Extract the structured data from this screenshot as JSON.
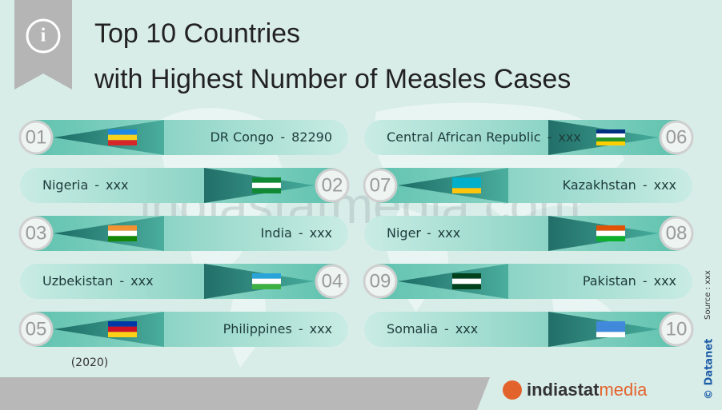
{
  "header": {
    "title_line1": "Top 10 Countries",
    "title_line2": "with Highest Number of Measles Cases"
  },
  "separator": "-",
  "items": [
    {
      "rank": "01",
      "country": "DR Congo",
      "value": 82290
    },
    {
      "rank": "02",
      "country": "Nigeria",
      "value": "xxx"
    },
    {
      "rank": "03",
      "country": "India",
      "value": "xxx"
    },
    {
      "rank": "04",
      "country": "Uzbekistan",
      "value": "xxx"
    },
    {
      "rank": "05",
      "country": "Philippines",
      "value": "xxx"
    },
    {
      "rank": "06",
      "country": "Central African Republic",
      "value": "xxx"
    },
    {
      "rank": "07",
      "country": "Kazakhstan",
      "value": "xxx"
    },
    {
      "rank": "08",
      "country": "Niger",
      "value": "xxx"
    },
    {
      "rank": "09",
      "country": "Pakistan",
      "value": "xxx"
    },
    {
      "rank": "10",
      "country": "Somalia",
      "value": "xxx"
    }
  ],
  "year_note": "(2020)",
  "source": "Source : xxx",
  "credit": "© Datanet",
  "watermark": "indiastatmedia.com",
  "brand": {
    "part1": "indiastat",
    "part2": "media"
  }
}
